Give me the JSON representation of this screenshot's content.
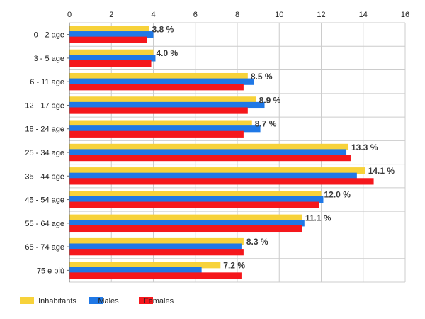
{
  "chart_data": {
    "type": "bar",
    "orientation": "horizontal",
    "categories": [
      "0 - 2 age",
      "3 - 5 age",
      "6 - 11 age",
      "12 - 17 age",
      "18 - 24 age",
      "25 - 34 age",
      "35 - 44 age",
      "45 - 54 age",
      "55 - 64 age",
      "65 - 74 age",
      "75 e più"
    ],
    "series": [
      {
        "name": "Inhabitants",
        "color": "#f7d23a",
        "values": [
          3.8,
          4.0,
          8.5,
          8.9,
          8.7,
          13.3,
          14.1,
          12.0,
          11.1,
          8.3,
          7.2
        ]
      },
      {
        "name": "Males",
        "color": "#1f78e6",
        "values": [
          4.0,
          4.1,
          8.8,
          9.3,
          9.1,
          13.2,
          13.7,
          12.1,
          11.2,
          8.2,
          6.3
        ]
      },
      {
        "name": "Females",
        "color": "#f5171c",
        "values": [
          3.7,
          3.9,
          8.3,
          8.5,
          8.3,
          13.4,
          14.5,
          11.9,
          11.1,
          8.3,
          8.2
        ]
      }
    ],
    "data_labels": [
      "3.8 %",
      "4.0 %",
      "8.5 %",
      "8.9 %",
      "8.7 %",
      "13.3 %",
      "14.1 %",
      "12.0 %",
      "11.1 %",
      "8.3 %",
      "7.2 %"
    ],
    "x_ticks": [
      "0",
      "2",
      "4",
      "6",
      "8",
      "10",
      "12",
      "14",
      "16"
    ],
    "xlim": [
      0,
      16
    ],
    "grid": true,
    "legend_position": "bottom-left"
  }
}
